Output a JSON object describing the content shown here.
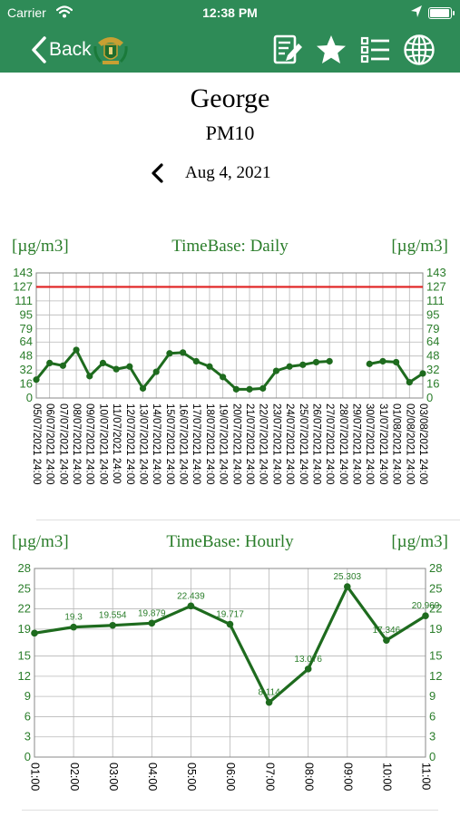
{
  "status_bar": {
    "carrier": "Carrier",
    "time": "12:38 PM"
  },
  "nav": {
    "back_label": "Back",
    "icons": [
      "edit-report-icon",
      "favorite-star-icon",
      "list-icon",
      "globe-icon"
    ]
  },
  "station": {
    "name": "George",
    "pollutant": "PM10",
    "date": "Aug 4, 2021"
  },
  "colors": {
    "header_green": "#2e8b57",
    "series_green": "#1e6b1e",
    "label_green": "#2a7d2a",
    "limit_red": "#e02020"
  },
  "charts": {
    "daily": {
      "unit_left": "[µg/m3]",
      "timebase": "TimeBase: Daily",
      "unit_right": "[µg/m3]"
    },
    "hourly": {
      "unit_left": "[µg/m3]",
      "timebase": "TimeBase: Hourly",
      "unit_right": "[µg/m3]"
    }
  },
  "chart_data": [
    {
      "type": "line",
      "ylim": [
        0,
        143
      ],
      "yticks": [
        0,
        16,
        32,
        48,
        64,
        79,
        95,
        111,
        127,
        143
      ],
      "limit_line": 127,
      "grid": true,
      "categories": [
        "05/07/2021 24:00",
        "06/07/2021 24:00",
        "07/07/2021 24:00",
        "08/07/2021 24:00",
        "09/07/2021 24:00",
        "10/07/2021 24:00",
        "11/07/2021 24:00",
        "12/07/2021 24:00",
        "13/07/2021 24:00",
        "14/07/2021 24:00",
        "15/07/2021 24:00",
        "16/07/2021 24:00",
        "17/07/2021 24:00",
        "18/07/2021 24:00",
        "19/07/2021 24:00",
        "20/07/2021 24:00",
        "21/07/2021 24:00",
        "22/07/2021 24:00",
        "23/07/2021 24:00",
        "24/07/2021 24:00",
        "25/07/2021 24:00",
        "26/07/2021 24:00",
        "27/07/2021 24:00",
        "28/07/2021 24:00",
        "29/07/2021 24:00",
        "30/07/2021 24:00",
        "31/07/2021 24:00",
        "01/08/2021 24:00",
        "02/08/2021 24:00",
        "03/08/2021 24:00"
      ],
      "values": [
        21,
        40,
        37,
        55,
        25,
        40,
        33,
        36,
        11,
        30,
        51,
        52,
        42,
        36,
        24,
        10,
        10,
        11,
        31,
        36,
        38,
        41,
        42,
        null,
        null,
        39,
        42,
        41,
        18,
        28
      ]
    },
    {
      "type": "line",
      "ylim": [
        0,
        28
      ],
      "yticks": [
        0,
        3,
        6,
        9,
        12,
        15,
        19,
        22,
        25,
        28
      ],
      "grid": true,
      "categories": [
        "01:00",
        "02:00",
        "03:00",
        "04:00",
        "05:00",
        "06:00",
        "07:00",
        "08:00",
        "09:00",
        "10:00",
        "11:00"
      ],
      "values": [
        18.4,
        19.3,
        19.554,
        19.879,
        22.439,
        19.717,
        8.114,
        13.076,
        25.303,
        17.346,
        20.969
      ],
      "data_labels": [
        null,
        "19.3",
        "19.554",
        "19.879",
        "22.439",
        "19.717",
        "8.114",
        "13.076",
        "25.303",
        "17.346",
        "20.969"
      ]
    }
  ]
}
